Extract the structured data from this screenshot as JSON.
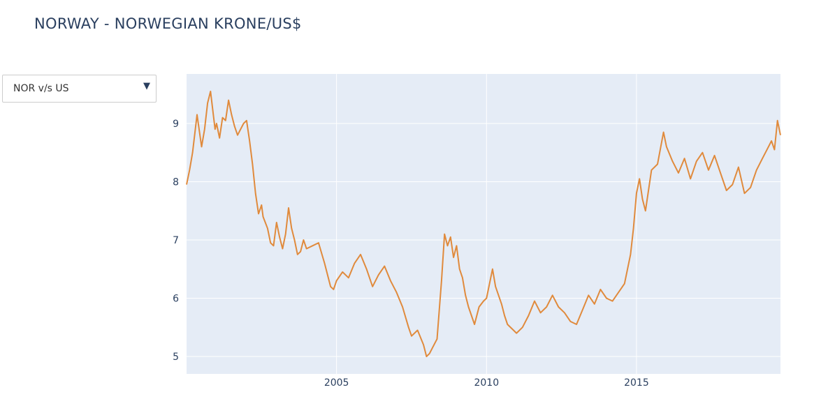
{
  "page": {
    "title": "NORWAY - NORWEGIAN KRONE/US$"
  },
  "dropdown": {
    "selected": "NOR v/s US",
    "arrow_icon": "triangle-down-icon"
  },
  "colors": {
    "plot_bg": "#e5ecf6",
    "grid": "#ffffff",
    "line": "#e08a3c",
    "text": "#2a3f5f"
  },
  "chart_data": {
    "type": "line",
    "title": "",
    "xlabel": "",
    "ylabel": "",
    "xlim": [
      2000.0,
      2019.8
    ],
    "ylim": [
      4.7,
      9.85
    ],
    "x_ticks": [
      2005,
      2010,
      2015
    ],
    "x_tick_labels": [
      "2005",
      "2010",
      "2015"
    ],
    "y_ticks": [
      5,
      6,
      7,
      8,
      9
    ],
    "y_tick_labels": [
      "5",
      "6",
      "7",
      "8",
      "9"
    ],
    "grid": true,
    "legend": "none",
    "series": [
      {
        "x": [
          2000.0,
          2000.1,
          2000.2,
          2000.35,
          2000.5,
          2000.6,
          2000.7,
          2000.8,
          2000.95,
          2001.0,
          2001.1,
          2001.2,
          2001.3,
          2001.4,
          2001.5,
          2001.6,
          2001.7,
          2001.8,
          2001.9,
          2002.0,
          2002.1,
          2002.2,
          2002.3,
          2002.4,
          2002.5,
          2002.55,
          2002.7,
          2002.8,
          2002.9,
          2003.0,
          2003.1,
          2003.2,
          2003.3,
          2003.4,
          2003.5,
          2003.6,
          2003.7,
          2003.8,
          2003.9,
          2004.0,
          2004.2,
          2004.4,
          2004.6,
          2004.8,
          2004.9,
          2005.0,
          2005.2,
          2005.4,
          2005.6,
          2005.8,
          2006.0,
          2006.2,
          2006.4,
          2006.6,
          2006.8,
          2007.0,
          2007.2,
          2007.4,
          2007.5,
          2007.7,
          2007.9,
          2008.0,
          2008.1,
          2008.2,
          2008.35,
          2008.5,
          2008.6,
          2008.7,
          2008.8,
          2008.9,
          2009.0,
          2009.1,
          2009.2,
          2009.3,
          2009.4,
          2009.5,
          2009.6,
          2009.75,
          2009.9,
          2010.0,
          2010.2,
          2010.3,
          2010.4,
          2010.5,
          2010.6,
          2010.7,
          2010.9,
          2011.0,
          2011.2,
          2011.4,
          2011.6,
          2011.8,
          2012.0,
          2012.2,
          2012.4,
          2012.6,
          2012.8,
          2013.0,
          2013.2,
          2013.4,
          2013.6,
          2013.8,
          2014.0,
          2014.2,
          2014.4,
          2014.6,
          2014.8,
          2014.9,
          2015.0,
          2015.1,
          2015.2,
          2015.3,
          2015.5,
          2015.7,
          2015.9,
          2016.0,
          2016.2,
          2016.4,
          2016.6,
          2016.8,
          2017.0,
          2017.2,
          2017.4,
          2017.6,
          2017.8,
          2018.0,
          2018.2,
          2018.4,
          2018.6,
          2018.8,
          2019.0,
          2019.2,
          2019.4,
          2019.5,
          2019.6,
          2019.7,
          2019.8
        ],
        "values": [
          7.95,
          8.2,
          8.5,
          9.15,
          8.6,
          8.9,
          9.35,
          9.55,
          8.9,
          9.0,
          8.75,
          9.1,
          9.05,
          9.4,
          9.15,
          8.95,
          8.8,
          8.9,
          9.0,
          9.05,
          8.7,
          8.3,
          7.8,
          7.45,
          7.6,
          7.4,
          7.2,
          6.95,
          6.9,
          7.3,
          7.05,
          6.85,
          7.1,
          7.55,
          7.2,
          7.0,
          6.75,
          6.8,
          7.0,
          6.85,
          6.9,
          6.95,
          6.6,
          6.2,
          6.15,
          6.3,
          6.45,
          6.35,
          6.6,
          6.75,
          6.5,
          6.2,
          6.4,
          6.55,
          6.3,
          6.1,
          5.85,
          5.5,
          5.35,
          5.45,
          5.2,
          5.0,
          5.05,
          5.15,
          5.3,
          6.3,
          7.1,
          6.9,
          7.05,
          6.7,
          6.9,
          6.5,
          6.35,
          6.05,
          5.85,
          5.7,
          5.55,
          5.85,
          5.95,
          6.0,
          6.5,
          6.2,
          6.05,
          5.9,
          5.7,
          5.55,
          5.45,
          5.4,
          5.5,
          5.7,
          5.95,
          5.75,
          5.85,
          6.05,
          5.85,
          5.75,
          5.6,
          5.55,
          5.8,
          6.05,
          5.9,
          6.15,
          6.0,
          5.95,
          6.1,
          6.25,
          6.75,
          7.2,
          7.8,
          8.05,
          7.7,
          7.5,
          8.2,
          8.3,
          8.85,
          8.6,
          8.35,
          8.15,
          8.4,
          8.05,
          8.35,
          8.5,
          8.2,
          8.45,
          8.15,
          7.85,
          7.95,
          8.25,
          7.8,
          7.9,
          8.2,
          8.4,
          8.6,
          8.7,
          8.55,
          9.05,
          8.8
        ],
        "color": "#e08a3c"
      }
    ]
  }
}
